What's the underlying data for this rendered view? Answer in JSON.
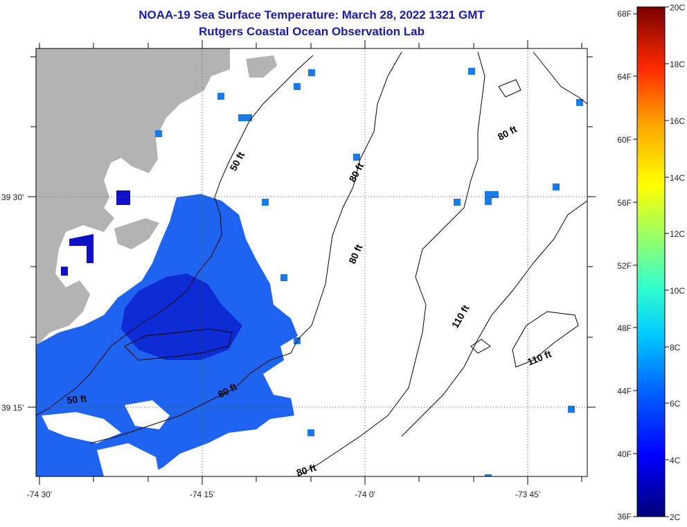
{
  "title": {
    "line1": "NOAA-19 Sea Surface Temperature:  March 28, 2022 1321 GMT",
    "line2": "Rutgers Coastal Ocean Observation Lab"
  },
  "axes": {
    "lat_labels": [
      "39 30'",
      "39 15'"
    ],
    "lon_labels": [
      "-74 30'",
      "-74 15'",
      "-74 0'",
      "-73 45'"
    ]
  },
  "contour_labels": [
    "50 ft",
    "80 ft",
    "80 ft",
    "80 ft",
    "80 ft",
    "110 ft",
    "110 ft",
    "50 ft",
    "80 ft"
  ],
  "colorbar": {
    "fahrenheit": [
      "68F",
      "64F",
      "60F",
      "56F",
      "52F",
      "48F",
      "44F",
      "40F",
      "36F"
    ],
    "celsius": [
      "20C",
      "18C",
      "16C",
      "14C",
      "12C",
      "10C",
      "8C",
      "6C",
      "4C",
      "2C"
    ]
  },
  "colors": {
    "land": "#b3b3b3",
    "water_sst": "#1e64f0",
    "water_sst_dark": "#0d2cd6",
    "title": "#1a1aa6"
  }
}
